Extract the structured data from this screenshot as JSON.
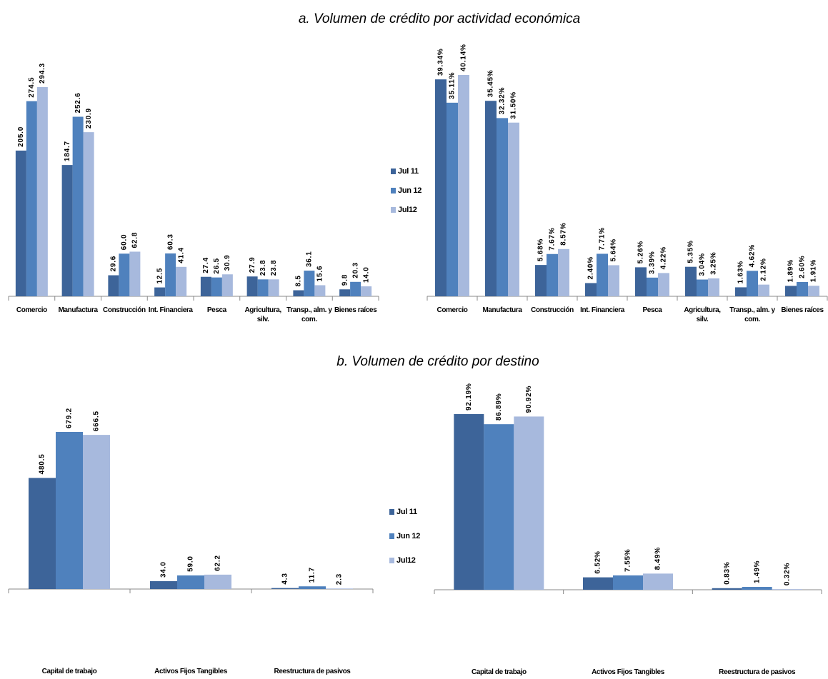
{
  "chart_data": [
    {
      "type": "bar",
      "title": "a.    Volumen de crédito por actividad  económica",
      "categories": [
        "Comercio",
        "Manufactura",
        "Construcción",
        "Int. Financiera",
        "Pesca",
        "Agricultura, silv.",
        "Transp., alm. y com.",
        "Bienes raíces"
      ],
      "series": [
        {
          "color": "#3d6499",
          "values": [
            205.0,
            184.7,
            29.6,
            12.5,
            27.4,
            27.9,
            8.5,
            9.8
          ],
          "value_labels": [
            "205.0",
            "184.7",
            "29.6",
            "12.5",
            "27.4",
            "27.9",
            "8.5",
            "9.8"
          ]
        },
        {
          "color": "#4f81bd",
          "values": [
            274.5,
            252.6,
            60.0,
            60.3,
            26.5,
            23.8,
            36.1,
            20.3
          ],
          "value_labels": [
            "274.5",
            "252.6",
            "60.0",
            "60.3",
            "26.5",
            "23.8",
            "36.1",
            "20.3"
          ]
        },
        {
          "color": "#a7b9dd",
          "values": [
            294.3,
            230.9,
            62.8,
            41.4,
            30.9,
            23.8,
            15.6,
            14.0
          ],
          "value_labels": [
            "294.3",
            "230.9",
            "62.8",
            "41.4",
            "30.9",
            "23.8",
            "15.6",
            "14.0"
          ]
        }
      ]
    },
    {
      "type": "bar",
      "categories": [
        "Comercio",
        "Manufactura",
        "Construcción",
        "Int. Financiera",
        "Pesca",
        "Agricultura, silv.",
        "Transp., alm. y com.",
        "Bienes raíces"
      ],
      "series": [
        {
          "name": "Jul 11",
          "color": "#3d6499",
          "values": [
            39.34,
            35.45,
            5.68,
            2.4,
            5.26,
            5.35,
            1.63,
            1.89
          ],
          "value_labels": [
            "39.34%",
            "35.45%",
            "5.68%",
            "2.40%",
            "5.26%",
            "5.35%",
            "1.63%",
            "1.89%"
          ]
        },
        {
          "name": "Jun 12",
          "color": "#4f81bd",
          "values": [
            35.11,
            32.32,
            7.67,
            7.71,
            3.39,
            3.04,
            4.62,
            2.6
          ],
          "value_labels": [
            "35.11%",
            "32.32%",
            "7.67%",
            "7.71%",
            "3.39%",
            "3.04%",
            "4.62%",
            "2.60%"
          ]
        },
        {
          "name": "Jul12",
          "color": "#a7b9dd",
          "values": [
            40.14,
            31.5,
            8.57,
            5.64,
            4.22,
            3.25,
            2.12,
            1.91
          ],
          "value_labels": [
            "40.14%",
            "31.50%",
            "8.57%",
            "5.64%",
            "4.22%",
            "3.25%",
            "2.12%",
            "1.91%"
          ]
        }
      ]
    },
    {
      "type": "bar",
      "title": "b.    Volumen de crédito por destino",
      "categories": [
        "Capital de trabajo",
        "Activos Fijos Tangibles",
        "Reestructura de pasivos"
      ],
      "series": [
        {
          "color": "#3d6499",
          "values": [
            480.5,
            34.0,
            4.3
          ],
          "value_labels": [
            "480.5",
            "34.0",
            "4.3"
          ]
        },
        {
          "color": "#4f81bd",
          "values": [
            679.2,
            59.0,
            11.7
          ],
          "value_labels": [
            "679.2",
            "59.0",
            "11.7"
          ]
        },
        {
          "color": "#a7b9dd",
          "values": [
            666.5,
            62.2,
            2.3
          ],
          "value_labels": [
            "666.5",
            "62.2",
            "2.3"
          ]
        }
      ]
    },
    {
      "type": "bar",
      "categories": [
        "Capital de trabajo",
        "Activos Fijos Tangibles",
        "Reestructura de pasivos"
      ],
      "series": [
        {
          "name": "Jul 11",
          "color": "#3d6499",
          "values": [
            92.19,
            6.52,
            0.83
          ],
          "value_labels": [
            "92.19%",
            "6.52%",
            "0.83%"
          ]
        },
        {
          "name": "Jun 12",
          "color": "#4f81bd",
          "values": [
            86.89,
            7.55,
            1.49
          ],
          "value_labels": [
            "86.89%",
            "7.55%",
            "1.49%"
          ]
        },
        {
          "name": "Jul12",
          "color": "#a7b9dd",
          "values": [
            90.92,
            8.49,
            0.32
          ],
          "value_labels": [
            "90.92%",
            "8.49%",
            "0.32%"
          ]
        }
      ]
    }
  ]
}
